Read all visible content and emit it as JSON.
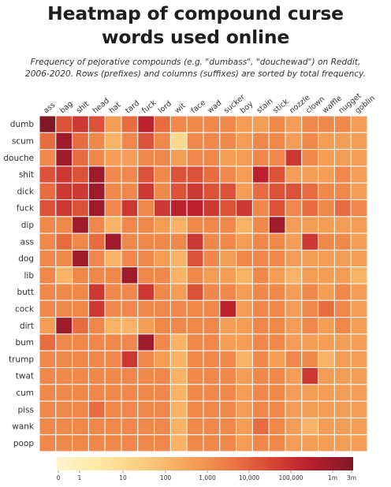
{
  "title": "Heatmap of compound curse\nwords used online",
  "subtitle": "Frequency of pejorative compounds (e.g. \"dumbass\", \"douchewad\") on Reddit,\n2006-2020. Rows (prefixes) and columns (suffixes) are sorted by total frequency.",
  "colors": {
    "scale": [
      "#fef6ce",
      "#fde8a4",
      "#fbcd80",
      "#f6a75d",
      "#ee7e46",
      "#d94a35",
      "#b81e2d",
      "#801826"
    ],
    "gridline": "#ffffff"
  },
  "chart_data": {
    "type": "heatmap",
    "title": "Heatmap of compound curse words used online",
    "rows": [
      "dumb",
      "scum",
      "douche",
      "shit",
      "dick",
      "fuck",
      "dip",
      "ass",
      "dog",
      "lib",
      "butt",
      "cock",
      "dirt",
      "bum",
      "trump",
      "twat",
      "cum",
      "piss",
      "wank",
      "poop"
    ],
    "columns": [
      "ass",
      "bag",
      "shit",
      "head",
      "hat",
      "tard",
      "fuck",
      "lord",
      "wit",
      "face",
      "wad",
      "sucker",
      "boy",
      "stain",
      "stick",
      "nozzle",
      "clown",
      "waffle",
      "nugget",
      "goblin"
    ],
    "scale": "log",
    "value_range": [
      0,
      3000000
    ],
    "colorbar": {
      "ticks": [
        "0",
        "1",
        "10",
        "100",
        "1,000",
        "10,000",
        "100,000",
        "1m",
        "3m"
      ]
    },
    "values": [
      [
        3000000,
        30000,
        100000,
        30000,
        1000,
        10000,
        300000,
        10000,
        3000,
        3000,
        3000,
        3000,
        1000,
        1000,
        3000,
        1000,
        3000,
        3000,
        3000,
        1000
      ],
      [
        10000,
        1000000,
        10000,
        3000,
        300,
        3000,
        30000,
        3000,
        30,
        3000,
        3000,
        3000,
        1000,
        3000,
        3000,
        1000,
        3000,
        1000,
        1000,
        1000
      ],
      [
        3000,
        1000000,
        10000,
        3000,
        1000,
        1000,
        3000,
        3000,
        1000,
        3000,
        3000,
        1000,
        1000,
        3000,
        3000,
        100000,
        3000,
        1000,
        1000,
        1000
      ],
      [
        30000,
        100000,
        30000,
        1000000,
        3000,
        3000,
        30000,
        3000,
        30000,
        30000,
        10000,
        3000,
        1000,
        300000,
        30000,
        1000,
        1000,
        1000,
        3000,
        1000
      ],
      [
        10000,
        100000,
        100000,
        1000000,
        3000,
        3000,
        100000,
        3000,
        30000,
        100000,
        30000,
        30000,
        1000,
        10000,
        30000,
        30000,
        10000,
        3000,
        3000,
        1000
      ],
      [
        30000,
        100000,
        30000,
        1000000,
        3000,
        100000,
        3000,
        100000,
        300000,
        300000,
        100000,
        30000,
        100000,
        3000,
        30000,
        3000,
        10000,
        3000,
        10000,
        3000
      ],
      [
        3000,
        3000,
        1000000,
        3000,
        300,
        3000,
        3000,
        1000,
        300,
        3000,
        3000,
        3000,
        300,
        3000,
        1000000,
        1000,
        1000,
        1000,
        1000,
        1000
      ],
      [
        3000,
        10000,
        3000,
        10000,
        1000000,
        3000,
        3000,
        3000,
        3000,
        100000,
        3000,
        3000,
        1000,
        3000,
        3000,
        1000,
        100000,
        3000,
        3000,
        1000
      ],
      [
        3000,
        3000,
        1000000,
        3000,
        300,
        3000,
        3000,
        1000,
        300,
        30000,
        3000,
        1000,
        3000,
        3000,
        3000,
        1000,
        1000,
        1000,
        1000,
        1000
      ],
      [
        3000,
        300,
        3000,
        3000,
        3000,
        1000000,
        3000,
        3000,
        300,
        3000,
        1000,
        1000,
        300,
        3000,
        1000,
        300,
        1000,
        1000,
        1000,
        300
      ],
      [
        3000,
        3000,
        3000,
        100000,
        3000,
        3000,
        100000,
        3000,
        1000,
        30000,
        3000,
        3000,
        1000,
        3000,
        3000,
        1000,
        3000,
        1000,
        3000,
        1000
      ],
      [
        3000,
        3000,
        3000,
        100000,
        3000,
        3000,
        3000,
        3000,
        3000,
        3000,
        3000,
        300000,
        1000,
        3000,
        3000,
        1000,
        3000,
        10000,
        3000,
        1000
      ],
      [
        1000,
        1000000,
        10000,
        3000,
        300,
        300,
        1000,
        3000,
        3000,
        3000,
        3000,
        1000,
        1000,
        3000,
        3000,
        1000,
        3000,
        1000,
        3000,
        1000
      ],
      [
        10000,
        3000,
        3000,
        3000,
        3000,
        3000,
        1000000,
        3000,
        300,
        3000,
        3000,
        1000,
        1000,
        3000,
        3000,
        1000,
        1000,
        1000,
        1000,
        1000
      ],
      [
        3000,
        3000,
        3000,
        3000,
        3000,
        100000,
        3000,
        1000,
        300,
        3000,
        3000,
        3000,
        300,
        3000,
        1000,
        3000,
        3000,
        300,
        1000,
        1000
      ],
      [
        3000,
        3000,
        3000,
        3000,
        3000,
        3000,
        3000,
        3000,
        300,
        3000,
        3000,
        3000,
        1000,
        3000,
        3000,
        1000,
        100000,
        1000,
        1000,
        1000
      ],
      [
        3000,
        3000,
        3000,
        3000,
        3000,
        3000,
        3000,
        3000,
        300,
        3000,
        3000,
        3000,
        1000,
        3000,
        3000,
        1000,
        1000,
        1000,
        1000,
        1000
      ],
      [
        3000,
        3000,
        3000,
        10000,
        3000,
        3000,
        3000,
        3000,
        300,
        3000,
        3000,
        3000,
        1000,
        3000,
        3000,
        1000,
        1000,
        1000,
        1000,
        1000
      ],
      [
        3000,
        3000,
        3000,
        3000,
        3000,
        3000,
        3000,
        3000,
        300,
        3000,
        3000,
        3000,
        1000,
        10000,
        3000,
        1000,
        300,
        1000,
        1000,
        1000
      ],
      [
        3000,
        3000,
        3000,
        3000,
        3000,
        3000,
        3000,
        3000,
        300,
        3000,
        3000,
        3000,
        1000,
        3000,
        3000,
        1000,
        1000,
        1000,
        1000,
        1000
      ]
    ]
  }
}
